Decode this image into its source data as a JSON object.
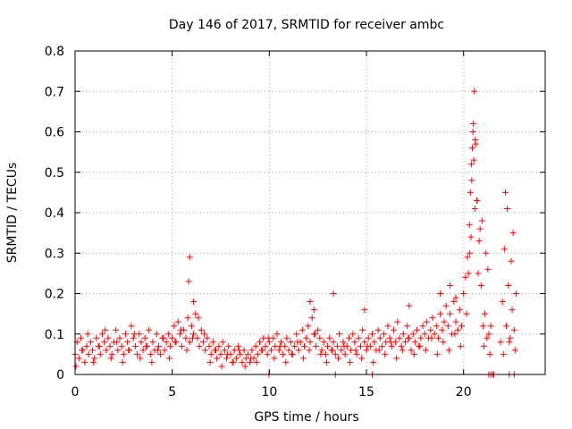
{
  "chart_data": {
    "type": "scatter",
    "title": "Day 146 of 2017, SRMTID for receiver ambc",
    "xlabel": "GPS time / hours",
    "ylabel": "SRMTID / TECUs",
    "xlim": [
      0,
      24.2
    ],
    "ylim": [
      0,
      0.8
    ],
    "xticks": [
      0,
      5,
      10,
      15,
      20
    ],
    "yticks": [
      0,
      0.1,
      0.2,
      0.3,
      0.4,
      0.5,
      0.6,
      0.7,
      0.8
    ],
    "xtick_labels": [
      "0",
      "5",
      "10",
      "15",
      "20"
    ],
    "ytick_labels": [
      "0",
      "0.1",
      "0.2",
      "0.3",
      "0.4",
      "0.5",
      "0.6",
      "0.7",
      "0.8"
    ],
    "grid": true,
    "marker": "+",
    "color": "#ff0000",
    "series": [
      {
        "name": "SRMTID",
        "x": [
          0.0,
          0.1,
          0.2,
          0.3,
          0.4,
          0.5,
          0.6,
          0.7,
          0.8,
          0.9,
          1.0,
          1.1,
          1.2,
          1.3,
          1.4,
          1.5,
          1.6,
          1.7,
          1.8,
          1.9,
          2.0,
          2.1,
          2.2,
          2.3,
          2.4,
          2.5,
          2.6,
          2.7,
          2.8,
          2.9,
          3.0,
          3.1,
          3.2,
          3.3,
          3.4,
          3.5,
          3.6,
          3.7,
          3.8,
          3.9,
          4.0,
          4.1,
          4.2,
          4.3,
          4.4,
          4.5,
          4.6,
          4.7,
          4.8,
          4.9,
          5.0,
          5.1,
          5.2,
          5.3,
          5.4,
          5.5,
          5.6,
          5.7,
          5.8,
          5.9,
          6.0,
          6.1,
          6.2,
          6.3,
          6.4,
          6.5,
          6.6,
          6.7,
          6.8,
          6.9,
          7.0,
          7.1,
          7.2,
          7.3,
          7.4,
          7.5,
          7.6,
          7.7,
          7.8,
          7.9,
          8.0,
          8.1,
          8.2,
          8.3,
          8.4,
          8.5,
          8.6,
          8.7,
          8.8,
          8.9,
          9.0,
          9.1,
          9.2,
          9.3,
          9.4,
          9.5,
          9.6,
          9.7,
          9.8,
          9.9,
          10.0,
          10.1,
          10.2,
          10.3,
          10.4,
          10.5,
          10.6,
          10.7,
          10.8,
          10.9,
          11.0,
          11.1,
          11.2,
          11.3,
          11.4,
          11.5,
          11.6,
          11.7,
          11.8,
          11.9,
          12.0,
          12.1,
          12.2,
          12.3,
          12.4,
          12.5,
          12.6,
          12.7,
          12.8,
          12.9,
          13.0,
          13.1,
          13.2,
          13.3,
          13.4,
          13.5,
          13.6,
          13.7,
          13.8,
          13.9,
          14.0,
          14.1,
          14.2,
          14.3,
          14.4,
          14.5,
          14.6,
          14.7,
          14.8,
          14.9,
          15.0,
          15.1,
          15.2,
          15.3,
          15.4,
          15.5,
          15.6,
          15.7,
          15.8,
          15.9,
          16.0,
          16.1,
          16.2,
          16.3,
          16.4,
          16.5,
          16.6,
          16.7,
          16.8,
          16.9,
          17.0,
          17.1,
          17.2,
          17.3,
          17.4,
          17.5,
          17.6,
          17.7,
          17.8,
          17.9,
          18.0,
          18.1,
          18.2,
          18.3,
          18.4,
          18.5,
          18.6,
          18.7,
          18.8,
          18.9,
          19.0,
          19.1,
          19.2,
          19.3,
          19.4,
          19.5,
          19.6,
          19.7,
          19.8,
          19.9,
          20.0,
          20.1,
          20.2,
          20.3,
          20.35,
          20.4,
          20.45,
          20.5,
          20.55,
          20.6,
          20.7,
          20.8,
          20.9,
          21.0,
          21.1,
          21.2,
          21.3,
          21.4,
          21.9,
          22.0,
          22.1,
          22.2,
          22.3,
          22.4,
          22.5,
          22.6,
          22.7,
          0.05,
          0.35,
          0.65,
          0.95,
          1.25,
          1.55,
          1.85,
          2.15,
          2.45,
          2.75,
          3.05,
          3.35,
          3.65,
          3.95,
          4.25,
          4.55,
          4.85,
          5.15,
          5.45,
          5.75,
          6.05,
          6.35,
          6.65,
          6.95,
          7.25,
          7.55,
          7.85,
          8.15,
          8.45,
          8.75,
          9.05,
          9.35,
          9.65,
          9.95,
          10.25,
          10.55,
          10.85,
          11.15,
          11.45,
          11.75,
          12.05,
          12.35,
          12.65,
          12.95,
          13.25,
          13.55,
          13.85,
          14.15,
          14.45,
          14.75,
          15.05,
          15.35,
          15.65,
          15.95,
          16.25,
          16.55,
          16.85,
          17.15,
          17.45,
          17.75,
          18.05,
          18.35,
          18.65,
          18.95,
          19.25,
          19.55,
          19.85,
          20.15,
          20.42,
          20.48,
          20.58,
          20.75,
          21.05,
          21.35,
          22.05,
          22.35,
          22.65,
          5.9,
          5.85,
          6.1,
          12.1,
          12.3,
          13.3,
          14.9,
          17.2,
          18.8,
          19.3,
          19.6,
          20.25,
          20.32,
          20.38,
          20.52,
          20.62,
          20.68,
          20.85,
          20.95,
          21.15,
          21.25,
          22.15,
          22.25,
          22.45,
          22.55,
          9.98,
          13.4,
          15.3,
          21.3,
          21.4,
          21.5,
          21.55,
          22.35,
          22.6
        ],
        "y": [
          0.05,
          0.08,
          0.04,
          0.09,
          0.06,
          0.03,
          0.07,
          0.05,
          0.08,
          0.06,
          0.04,
          0.09,
          0.07,
          0.05,
          0.1,
          0.08,
          0.06,
          0.09,
          0.07,
          0.05,
          0.08,
          0.11,
          0.06,
          0.09,
          0.07,
          0.05,
          0.1,
          0.08,
          0.06,
          0.12,
          0.09,
          0.07,
          0.05,
          0.1,
          0.08,
          0.06,
          0.09,
          0.07,
          0.11,
          0.05,
          0.08,
          0.06,
          0.1,
          0.07,
          0.05,
          0.09,
          0.06,
          0.08,
          0.1,
          0.07,
          0.09,
          0.12,
          0.08,
          0.13,
          0.1,
          0.07,
          0.11,
          0.09,
          0.14,
          0.08,
          0.12,
          0.1,
          0.15,
          0.09,
          0.07,
          0.11,
          0.08,
          0.06,
          0.09,
          0.07,
          0.05,
          0.08,
          0.06,
          0.04,
          0.07,
          0.05,
          0.08,
          0.06,
          0.04,
          0.07,
          0.05,
          0.03,
          0.06,
          0.04,
          0.07,
          0.05,
          0.03,
          0.06,
          0.04,
          0.05,
          0.03,
          0.06,
          0.04,
          0.07,
          0.05,
          0.08,
          0.06,
          0.09,
          0.07,
          0.05,
          0.08,
          0.06,
          0.09,
          0.07,
          0.1,
          0.06,
          0.08,
          0.05,
          0.07,
          0.09,
          0.06,
          0.08,
          0.05,
          0.07,
          0.1,
          0.06,
          0.08,
          0.11,
          0.07,
          0.09,
          0.12,
          0.08,
          0.14,
          0.1,
          0.07,
          0.11,
          0.09,
          0.06,
          0.08,
          0.05,
          0.07,
          0.09,
          0.06,
          0.08,
          0.05,
          0.07,
          0.1,
          0.06,
          0.08,
          0.05,
          0.07,
          0.09,
          0.06,
          0.1,
          0.08,
          0.05,
          0.09,
          0.07,
          0.11,
          0.08,
          0.06,
          0.09,
          0.07,
          0.1,
          0.08,
          0.06,
          0.11,
          0.09,
          0.07,
          0.1,
          0.08,
          0.12,
          0.09,
          0.07,
          0.11,
          0.08,
          0.13,
          0.09,
          0.07,
          0.1,
          0.08,
          0.12,
          0.09,
          0.06,
          0.1,
          0.08,
          0.11,
          0.07,
          0.09,
          0.12,
          0.1,
          0.13,
          0.09,
          0.11,
          0.14,
          0.1,
          0.12,
          0.09,
          0.15,
          0.11,
          0.13,
          0.17,
          0.12,
          0.15,
          0.1,
          0.18,
          0.13,
          0.11,
          0.16,
          0.12,
          0.2,
          0.24,
          0.29,
          0.37,
          0.45,
          0.52,
          0.56,
          0.62,
          0.7,
          0.58,
          0.43,
          0.33,
          0.22,
          0.12,
          0.15,
          0.09,
          0.1,
          0.12,
          0.08,
          0.18,
          0.31,
          0.12,
          0.22,
          0.09,
          0.16,
          0.11,
          0.2,
          0.02,
          0.06,
          0.1,
          0.03,
          0.07,
          0.11,
          0.04,
          0.08,
          0.03,
          0.06,
          0.1,
          0.04,
          0.07,
          0.03,
          0.06,
          0.09,
          0.04,
          0.08,
          0.11,
          0.06,
          0.09,
          0.14,
          0.1,
          0.03,
          0.06,
          0.02,
          0.05,
          0.03,
          0.06,
          0.02,
          0.04,
          0.03,
          0.06,
          0.09,
          0.04,
          0.07,
          0.03,
          0.05,
          0.08,
          0.04,
          0.06,
          0.1,
          0.05,
          0.03,
          0.06,
          0.04,
          0.07,
          0.03,
          0.06,
          0.04,
          0.07,
          0.03,
          0.06,
          0.05,
          0.08,
          0.04,
          0.06,
          0.09,
          0.05,
          0.07,
          0.06,
          0.09,
          0.05,
          0.08,
          0.06,
          0.1,
          0.07,
          0.15,
          0.48,
          0.6,
          0.41,
          0.25,
          0.07,
          0.05,
          0.05,
          0.08,
          0.06,
          0.29,
          0.23,
          0.18,
          0.18,
          0.16,
          0.2,
          0.16,
          0.17,
          0.2,
          0.22,
          0.19,
          0.25,
          0.3,
          0.34,
          0.53,
          0.57,
          0.43,
          0.36,
          0.38,
          0.3,
          0.26,
          0.45,
          0.41,
          0.28,
          0.35,
          0.0,
          0.0,
          0.0,
          0.0,
          0.0,
          0.0,
          0.0,
          0.0,
          0.0
        ]
      }
    ]
  }
}
